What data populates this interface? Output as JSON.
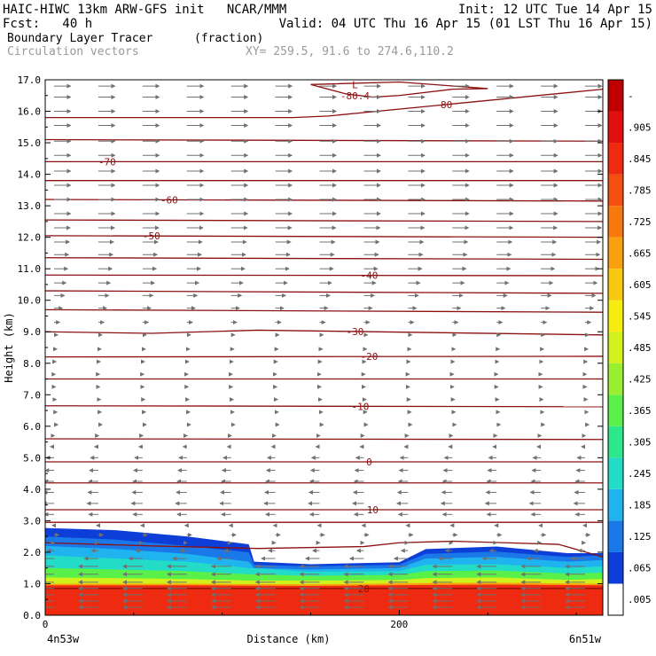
{
  "header": {
    "line1_left": "HAIC-HIWC 13km ARW-GFS init   NCAR/MMM",
    "line1_right": "Init: 12 UTC Tue 14 Apr 15",
    "line2_left": "Fcst:   40 h",
    "line2_right": "Valid: 04 UTC Thu 16 Apr 15 (01 LST Thu 16 Apr 15)",
    "field_name": "Boundary Layer Tracer",
    "field_units": "(fraction)",
    "vector_name": "Circulation vectors",
    "xy_info": "XY= 259.5, 91.6 to 274.6,110.2"
  },
  "colors": {
    "contour": "#8b1010",
    "vector": "#707070",
    "frame": "#000000"
  },
  "chart_data": {
    "type": "heatmap",
    "subtype": "vertical cross-section with temperature contours and circulation vectors",
    "xlabel": "Distance (km)",
    "ylabel": "Height (km)",
    "xlim": [
      0,
      315
    ],
    "ylim": [
      0,
      17
    ],
    "x_ticks": [
      0,
      200
    ],
    "x_end_labels": [
      "4n53w",
      "6n51w"
    ],
    "y_ticks": [
      "0.0",
      "1.0",
      "2.0",
      "3.0",
      "4.0",
      "5.0",
      "6.0",
      "7.0",
      "8.0",
      "9.0",
      "10.0",
      "11.0",
      "12.0",
      "13.0",
      "14.0",
      "15.0",
      "16.0",
      "17.0"
    ],
    "colorbar": {
      "labels": [
        ".005",
        ".065",
        ".125",
        ".185",
        ".245",
        ".305",
        ".365",
        ".425",
        ".485",
        ".545",
        ".605",
        ".665",
        ".725",
        ".785",
        ".845",
        ".905",
        "-"
      ],
      "colors": [
        "#ffffff",
        "#0d3fd8",
        "#1a78e8",
        "#1fb4f0",
        "#22dcc8",
        "#2ee68c",
        "#5af04a",
        "#9af030",
        "#d2f01c",
        "#f6ec12",
        "#f8c810",
        "#f8a010",
        "#f87810",
        "#f44e10",
        "#ee2a10",
        "#e01010",
        "#c00000"
      ]
    },
    "tracer_layers": [
      {
        "color": "#0d3fd8",
        "top_profile": [
          [
            0,
            2.77
          ],
          [
            40,
            2.7
          ],
          [
            80,
            2.5
          ],
          [
            115,
            2.25
          ],
          [
            118,
            1.7
          ],
          [
            150,
            1.62
          ],
          [
            200,
            1.68
          ],
          [
            215,
            2.1
          ],
          [
            255,
            2.18
          ],
          [
            295,
            1.97
          ],
          [
            315,
            1.97
          ]
        ]
      },
      {
        "color": "#1a78e8",
        "top_profile": [
          [
            0,
            2.5
          ],
          [
            40,
            2.4
          ],
          [
            80,
            2.2
          ],
          [
            115,
            2.0
          ],
          [
            118,
            1.6
          ],
          [
            150,
            1.55
          ],
          [
            200,
            1.6
          ],
          [
            215,
            1.95
          ],
          [
            255,
            2.02
          ],
          [
            295,
            1.85
          ],
          [
            315,
            1.9
          ]
        ]
      },
      {
        "color": "#1fb4f0",
        "top_profile": [
          [
            0,
            2.2
          ],
          [
            40,
            2.1
          ],
          [
            80,
            1.95
          ],
          [
            115,
            1.7
          ],
          [
            118,
            1.5
          ],
          [
            150,
            1.45
          ],
          [
            200,
            1.5
          ],
          [
            215,
            1.8
          ],
          [
            255,
            1.85
          ],
          [
            295,
            1.7
          ],
          [
            315,
            1.75
          ]
        ]
      },
      {
        "color": "#22dcc8",
        "top_profile": [
          [
            0,
            1.9
          ],
          [
            40,
            1.8
          ],
          [
            80,
            1.7
          ],
          [
            115,
            1.5
          ],
          [
            150,
            1.38
          ],
          [
            200,
            1.4
          ],
          [
            215,
            1.6
          ],
          [
            255,
            1.62
          ],
          [
            295,
            1.5
          ],
          [
            315,
            1.55
          ]
        ]
      },
      {
        "color": "#5af04a",
        "top_profile": [
          [
            0,
            1.5
          ],
          [
            40,
            1.45
          ],
          [
            80,
            1.4
          ],
          [
            115,
            1.3
          ],
          [
            150,
            1.25
          ],
          [
            200,
            1.28
          ],
          [
            215,
            1.4
          ],
          [
            255,
            1.42
          ],
          [
            295,
            1.32
          ],
          [
            315,
            1.35
          ]
        ]
      },
      {
        "color": "#d2f01c",
        "top_profile": [
          [
            0,
            1.2
          ],
          [
            40,
            1.18
          ],
          [
            80,
            1.15
          ],
          [
            115,
            1.1
          ],
          [
            150,
            1.1
          ],
          [
            200,
            1.12
          ],
          [
            215,
            1.18
          ],
          [
            255,
            1.2
          ],
          [
            295,
            1.12
          ],
          [
            315,
            1.15
          ]
        ]
      },
      {
        "color": "#f8a010",
        "top_profile": [
          [
            0,
            1.0
          ],
          [
            80,
            1.0
          ],
          [
            150,
            0.98
          ],
          [
            215,
            1.02
          ],
          [
            255,
            1.03
          ],
          [
            315,
            1.0
          ]
        ]
      },
      {
        "color": "#ee2a10",
        "top_profile": [
          [
            0,
            0.95
          ],
          [
            80,
            0.95
          ],
          [
            150,
            0.93
          ],
          [
            215,
            0.96
          ],
          [
            255,
            0.97
          ],
          [
            315,
            0.95
          ]
        ]
      }
    ],
    "temperature_contours": [
      {
        "label": "20",
        "label_x": 180,
        "points": [
          [
            0,
            0.85
          ],
          [
            315,
            0.85
          ]
        ]
      },
      {
        "label": "",
        "label_x": null,
        "points": [
          [
            0,
            2.3
          ],
          [
            60,
            2.2
          ],
          [
            120,
            2.12
          ],
          [
            180,
            2.18
          ],
          [
            200,
            2.3
          ],
          [
            230,
            2.35
          ],
          [
            260,
            2.3
          ],
          [
            290,
            2.25
          ],
          [
            315,
            1.85
          ]
        ]
      },
      {
        "label": "",
        "label_x": null,
        "points": [
          [
            0,
            2.95
          ],
          [
            315,
            2.95
          ]
        ]
      },
      {
        "label": "10",
        "label_x": 185,
        "points": [
          [
            0,
            3.35
          ],
          [
            315,
            3.35
          ]
        ]
      },
      {
        "label": "",
        "label_x": null,
        "points": [
          [
            0,
            4.2
          ],
          [
            315,
            4.2
          ]
        ]
      },
      {
        "label": "0",
        "label_x": 183,
        "points": [
          [
            0,
            4.87
          ],
          [
            315,
            4.87
          ]
        ]
      },
      {
        "label": "",
        "label_x": null,
        "points": [
          [
            0,
            5.6
          ],
          [
            315,
            5.58
          ]
        ]
      },
      {
        "label": "-10",
        "label_x": 178,
        "points": [
          [
            0,
            6.65
          ],
          [
            315,
            6.62
          ]
        ]
      },
      {
        "label": "",
        "label_x": null,
        "points": [
          [
            0,
            7.5
          ],
          [
            315,
            7.5
          ]
        ]
      },
      {
        "label": "-20",
        "label_x": 183,
        "points": [
          [
            0,
            8.2
          ],
          [
            315,
            8.22
          ]
        ]
      },
      {
        "label": "-30",
        "label_x": 175,
        "points": [
          [
            0,
            9.0
          ],
          [
            60,
            8.95
          ],
          [
            120,
            9.05
          ],
          [
            315,
            8.9
          ]
        ]
      },
      {
        "label": "",
        "label_x": null,
        "points": [
          [
            0,
            9.7
          ],
          [
            315,
            9.62
          ]
        ]
      },
      {
        "label": "",
        "label_x": null,
        "points": [
          [
            0,
            10.3
          ],
          [
            315,
            10.22
          ]
        ]
      },
      {
        "label": "-40",
        "label_x": 183,
        "points": [
          [
            0,
            10.8
          ],
          [
            315,
            10.78
          ]
        ]
      },
      {
        "label": "",
        "label_x": null,
        "points": [
          [
            0,
            11.35
          ],
          [
            315,
            11.3
          ]
        ]
      },
      {
        "label": "-50",
        "label_x": 60,
        "points": [
          [
            0,
            12.05
          ],
          [
            315,
            12.0
          ]
        ]
      },
      {
        "label": "",
        "label_x": null,
        "points": [
          [
            0,
            12.55
          ],
          [
            315,
            12.5
          ]
        ]
      },
      {
        "label": "-60",
        "label_x": 70,
        "points": [
          [
            0,
            13.2
          ],
          [
            315,
            13.15
          ]
        ]
      },
      {
        "label": "",
        "label_x": null,
        "points": [
          [
            0,
            13.8
          ],
          [
            315,
            13.8
          ]
        ]
      },
      {
        "label": "-70",
        "label_x": 35,
        "points": [
          [
            0,
            14.4
          ],
          [
            315,
            14.4
          ]
        ]
      },
      {
        "label": "",
        "label_x": null,
        "points": [
          [
            0,
            15.1
          ],
          [
            315,
            15.05
          ]
        ]
      },
      {
        "label": "-80",
        "label_x": 225,
        "points": [
          [
            0,
            15.8
          ],
          [
            140,
            15.8
          ],
          [
            160,
            15.85
          ],
          [
            315,
            16.7
          ]
        ]
      }
    ],
    "closed_contours": [
      {
        "label": "-80.4",
        "center_label": "L",
        "points": [
          [
            150,
            16.85
          ],
          [
            170,
            16.55
          ],
          [
            185,
            16.45
          ],
          [
            200,
            16.5
          ],
          [
            230,
            16.7
          ],
          [
            250,
            16.72
          ],
          [
            200,
            16.93
          ],
          [
            150,
            16.85
          ]
        ]
      }
    ],
    "vector_grid": {
      "x_start": 5,
      "x_step": 25,
      "x_count": 13,
      "y_levels": [
        0.25,
        0.45,
        0.65,
        0.85,
        1.05,
        1.3,
        1.55,
        1.8,
        2.05,
        2.3,
        2.55,
        2.85,
        3.2,
        3.55,
        3.9,
        4.25,
        4.6,
        5.0,
        5.35,
        5.7,
        6.05,
        6.45,
        6.85,
        7.25,
        7.65,
        8.05,
        8.45,
        8.9,
        9.3,
        9.75,
        10.15,
        10.55,
        11.0,
        11.45,
        11.85,
        12.3,
        12.75,
        13.2,
        13.65,
        14.1,
        14.6,
        15.05,
        15.55,
        16.0,
        16.45,
        16.8
      ],
      "u_profile": [
        [
          0.0,
          -1.0
        ],
        [
          1.6,
          -1.0
        ],
        [
          2.5,
          0.3
        ],
        [
          3.3,
          -0.6
        ],
        [
          4.2,
          -0.5
        ],
        [
          5.0,
          -0.4
        ],
        [
          6.0,
          0.2
        ],
        [
          7.5,
          0.05
        ],
        [
          9.0,
          0.2
        ],
        [
          10.0,
          0.5
        ],
        [
          11.0,
          0.7
        ],
        [
          12.5,
          0.85
        ],
        [
          14.0,
          0.85
        ],
        [
          15.5,
          0.85
        ],
        [
          17.0,
          0.85
        ]
      ]
    }
  }
}
